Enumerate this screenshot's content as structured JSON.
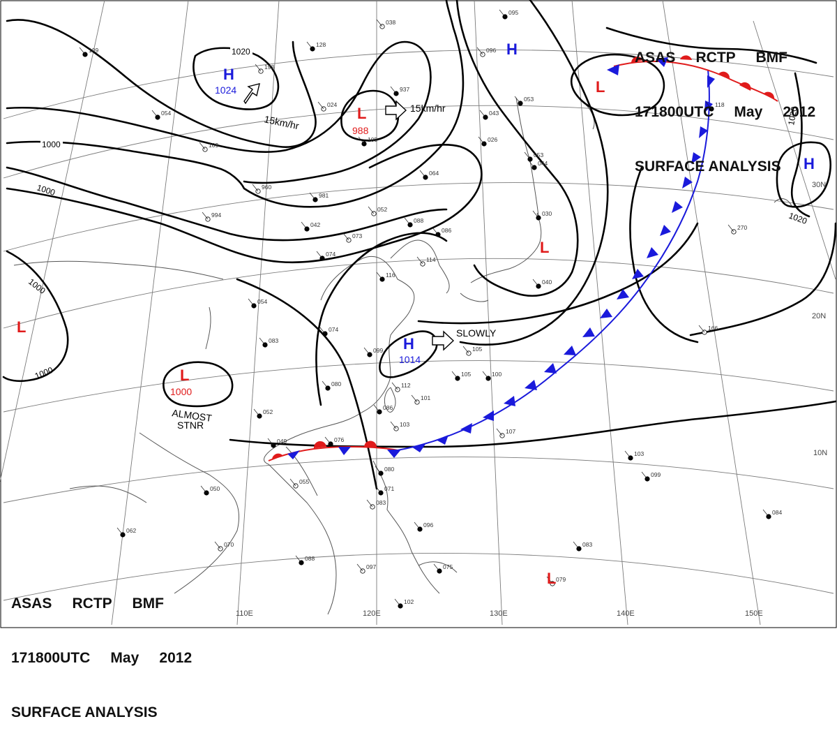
{
  "header_top_right": {
    "line1": "ASAS     RCTP     BMF",
    "line2": "171800UTC     May     2012",
    "line3": "SURFACE ANALYSIS"
  },
  "header_bottom_left": {
    "line1": "ASAS     RCTP     BMF",
    "line2": "171800UTC     May     2012",
    "line3": "SURFACE ANALYSIS"
  },
  "pressure_systems": [
    {
      "id": "high-1024",
      "type": "H",
      "value": "1024",
      "color": "#1a1adb"
    },
    {
      "id": "low-988",
      "type": "L",
      "value": "988",
      "color": "#e01b1b"
    },
    {
      "id": "high-1014",
      "type": "H",
      "value": "1014",
      "color": "#1a1adb"
    },
    {
      "id": "low-1000",
      "type": "L",
      "value": "1000",
      "color": "#e01b1b"
    },
    {
      "id": "high-ne",
      "type": "H",
      "value": "",
      "color": "#1a1adb"
    },
    {
      "id": "high-east",
      "type": "H",
      "value": "",
      "color": "#1a1adb"
    },
    {
      "id": "low-west",
      "type": "L",
      "value": "",
      "color": "#e01b1b"
    },
    {
      "id": "low-japan",
      "type": "L",
      "value": "",
      "color": "#e01b1b"
    },
    {
      "id": "low-ne-front",
      "type": "L",
      "value": "",
      "color": "#e01b1b"
    },
    {
      "id": "low-south",
      "type": "L",
      "value": "",
      "color": "#e01b1b"
    }
  ],
  "motion_labels": {
    "high_1024": "15km/hr",
    "low_988": "15km/hr",
    "high_1014": "SLOWLY",
    "low_1000_line1": "ALMOST",
    "low_1000_line2": "STNR"
  },
  "isobar_labels": [
    "1020",
    "1000",
    "1000",
    "1000",
    "1000",
    "1020",
    "1020"
  ],
  "longitude_labels": [
    "110E",
    "120E",
    "130E",
    "140E",
    "150E"
  ],
  "latitude_labels": [
    "30N",
    "20N",
    "10N"
  ],
  "station_values": [
    "038",
    "095",
    "109",
    "193",
    "128",
    "937",
    "096",
    "053",
    "054",
    "024",
    "105",
    "043",
    "109",
    "026",
    "053",
    "960",
    "981",
    "044",
    "994",
    "064",
    "118",
    "052",
    "088",
    "042",
    "073",
    "086",
    "030",
    "270",
    "074",
    "116",
    "114",
    "054",
    "040",
    "166",
    "074",
    "099",
    "105",
    "083",
    "080",
    "112",
    "105",
    "100",
    "101",
    "052",
    "086",
    "103",
    "049",
    "076",
    "107",
    "103",
    "050",
    "055",
    "080",
    "071",
    "083",
    "099",
    "096",
    "070",
    "062",
    "088",
    "097",
    "075",
    "083",
    "079",
    "084",
    "102"
  ],
  "colors": {
    "warm_front": "#e01b1b",
    "cold_front": "#1a1adb",
    "isobar": "#000000",
    "coast": "#555555",
    "grid": "#7a7a7a"
  }
}
